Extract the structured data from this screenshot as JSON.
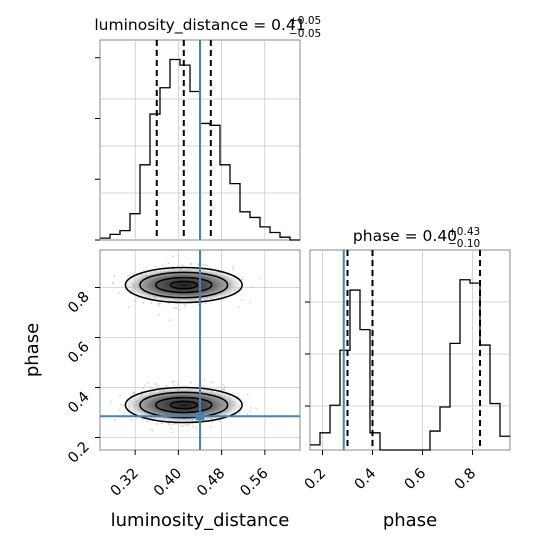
{
  "colors": {
    "truth": "#4682b4",
    "hist": "#000000",
    "quantile": "#000000",
    "grid": "#c8c8c8",
    "scatter": "#9a9a9a"
  },
  "chart_data": [
    {
      "panel": "luminosity_distance-histogram",
      "type": "histogram",
      "title": "luminosity_distance = 0.41",
      "title_main": "luminosity_distance = 0.41",
      "title_sup": "+0.05",
      "title_sub": "−0.05",
      "xlim": [
        0.255,
        0.625
      ],
      "xticks": [
        0.32,
        0.4,
        0.48,
        0.56
      ],
      "bin_edges": [
        0.255,
        0.2735,
        0.292,
        0.3105,
        0.329,
        0.3475,
        0.366,
        0.3845,
        0.403,
        0.4215,
        0.44,
        0.4585,
        0.477,
        0.4955,
        0.514,
        0.5325,
        0.551,
        0.5695,
        0.588,
        0.6065,
        0.625
      ],
      "counts": [
        0.01,
        0.03,
        0.05,
        0.14,
        0.4,
        0.67,
        0.81,
        0.96,
        0.93,
        0.79,
        0.62,
        0.61,
        0.4,
        0.3,
        0.15,
        0.12,
        0.07,
        0.04,
        0.015,
        0.0
      ],
      "quantiles": [
        0.36,
        0.41,
        0.46
      ],
      "truth": 0.44
    },
    {
      "panel": "phase-histogram",
      "type": "histogram",
      "title": "phase = 0.40",
      "title_main": "phase = 0.40",
      "title_sup": "+0.43",
      "title_sub": "−0.10",
      "xlim": [
        0.15,
        0.95
      ],
      "xticks": [
        0.2,
        0.4,
        0.6,
        0.8
      ],
      "xlabel": "phase",
      "bin_edges": [
        0.15,
        0.19,
        0.23,
        0.27,
        0.31,
        0.35,
        0.39,
        0.43,
        0.47,
        0.51,
        0.55,
        0.59,
        0.63,
        0.67,
        0.71,
        0.75,
        0.79,
        0.83,
        0.87,
        0.91,
        0.95
      ],
      "counts": [
        0.03,
        0.1,
        0.26,
        0.58,
        0.93,
        0.7,
        0.1,
        0.0,
        0.0,
        0.0,
        0.0,
        0.0,
        0.11,
        0.25,
        0.62,
        0.99,
        0.97,
        0.61,
        0.27,
        0.08
      ],
      "quantiles": [
        0.3,
        0.4,
        0.83
      ],
      "truth": 0.285
    },
    {
      "panel": "joint-2d",
      "type": "scatter",
      "xlabel": "luminosity_distance",
      "ylabel": "phase",
      "xlim": [
        0.255,
        0.625
      ],
      "ylim": [
        0.15,
        0.95
      ],
      "xticks": [
        0.32,
        0.4,
        0.48,
        0.56
      ],
      "yticks": [
        0.2,
        0.4,
        0.6,
        0.8
      ],
      "truth": [
        0.44,
        0.285
      ],
      "clusters": [
        {
          "center": [
            0.41,
            0.81
          ],
          "spread": [
            0.045,
            0.035
          ]
        },
        {
          "center": [
            0.41,
            0.33
          ],
          "spread": [
            0.045,
            0.035
          ]
        }
      ]
    }
  ]
}
